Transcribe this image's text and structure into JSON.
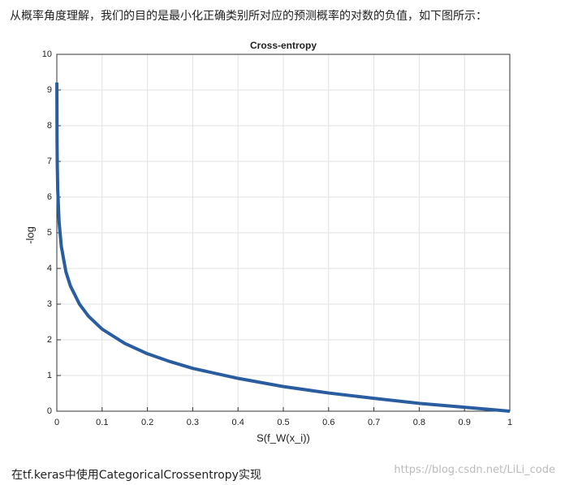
{
  "intro": "从概率角度理解，我们的目的是最小化正确类别所对应的预测概率的对数的负值，如下图所示：",
  "chart_data": {
    "type": "line",
    "title": "Cross-entropy",
    "xlabel": "S(f_W(x_i))",
    "ylabel": "-log",
    "x": [
      0.0001,
      0.0005,
      0.001,
      0.002,
      0.005,
      0.01,
      0.02,
      0.03,
      0.05,
      0.07,
      0.1,
      0.15,
      0.2,
      0.25,
      0.3,
      0.4,
      0.5,
      0.6,
      0.7,
      0.8,
      0.9,
      1
    ],
    "values": [
      9.21,
      7.6,
      6.91,
      6.21,
      5.3,
      4.61,
      3.91,
      3.51,
      3.0,
      2.66,
      2.3,
      1.9,
      1.61,
      1.39,
      1.2,
      0.92,
      0.69,
      0.51,
      0.36,
      0.22,
      0.11,
      0
    ],
    "color": "#2a5d9f",
    "xlim": [
      0,
      1
    ],
    "xticks": [
      0,
      0.1,
      0.2,
      0.3,
      0.4,
      0.5,
      0.6,
      0.7,
      0.8,
      0.9,
      1
    ],
    "ylim": [
      0,
      10
    ],
    "yticks": [
      0,
      1,
      2,
      3,
      4,
      5,
      6,
      7,
      8,
      9,
      10
    ],
    "grid": true
  },
  "footer": "在tf.keras中使用CategoricalCrossentropy实现",
  "watermark": "https://blog.csdn.net/LiLi_code"
}
